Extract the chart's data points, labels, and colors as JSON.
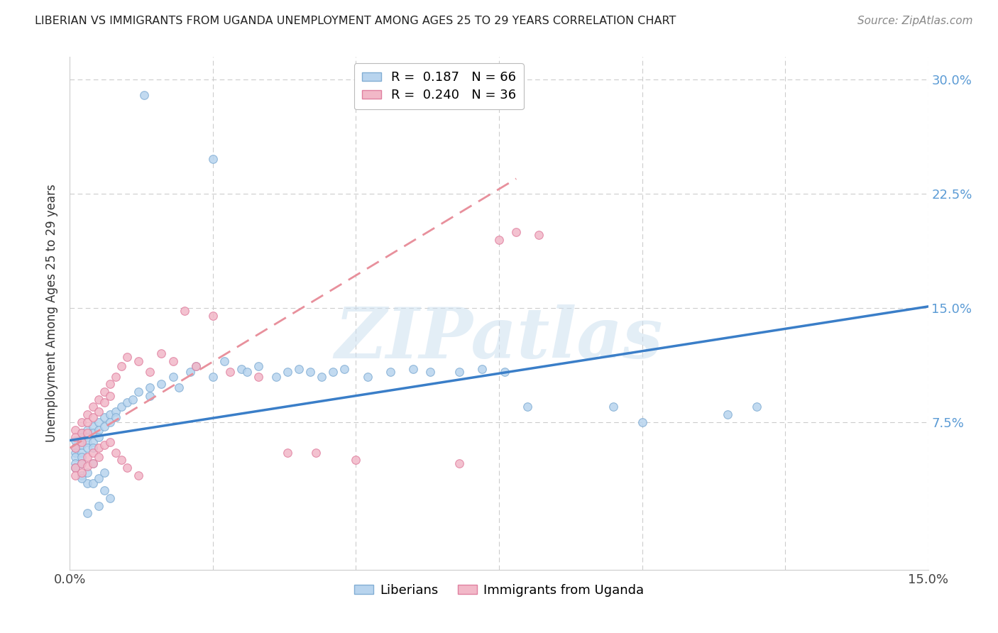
{
  "title": "LIBERIAN VS IMMIGRANTS FROM UGANDA UNEMPLOYMENT AMONG AGES 25 TO 29 YEARS CORRELATION CHART",
  "source": "Source: ZipAtlas.com",
  "ylabel": "Unemployment Among Ages 25 to 29 years",
  "xlim": [
    0.0,
    0.15
  ],
  "ylim": [
    -0.022,
    0.315
  ],
  "watermark": "ZIPatlas",
  "background_color": "#ffffff",
  "scatter_size": 70,
  "liberian_color": "#b8d4ee",
  "liberian_edge": "#82aed4",
  "uganda_color": "#f2b8c8",
  "uganda_edge": "#e080a0",
  "liberian_trend_x": [
    0.0,
    0.15
  ],
  "liberian_trend_y": [
    0.063,
    0.151
  ],
  "uganda_trend_x": [
    0.0,
    0.078
  ],
  "uganda_trend_y": [
    0.058,
    0.235
  ],
  "lib_x": [
    0.001,
    0.001,
    0.001,
    0.001,
    0.001,
    0.001,
    0.002,
    0.002,
    0.002,
    0.002,
    0.002,
    0.002,
    0.003,
    0.003,
    0.003,
    0.003,
    0.004,
    0.004,
    0.004,
    0.004,
    0.005,
    0.005,
    0.005,
    0.006,
    0.006,
    0.007,
    0.007,
    0.008,
    0.008,
    0.009,
    0.01,
    0.011,
    0.012,
    0.014,
    0.014,
    0.016,
    0.018,
    0.019,
    0.021,
    0.022,
    0.025,
    0.027,
    0.03,
    0.031,
    0.033,
    0.036,
    0.038,
    0.04,
    0.042,
    0.044,
    0.046,
    0.048,
    0.052,
    0.056,
    0.06,
    0.063,
    0.068,
    0.072,
    0.076,
    0.08,
    0.095,
    0.1,
    0.115,
    0.12,
    0.013,
    0.025
  ],
  "lib_y": [
    0.063,
    0.058,
    0.055,
    0.052,
    0.048,
    0.045,
    0.068,
    0.065,
    0.06,
    0.055,
    0.052,
    0.048,
    0.07,
    0.065,
    0.062,
    0.058,
    0.072,
    0.068,
    0.062,
    0.058,
    0.075,
    0.07,
    0.065,
    0.078,
    0.072,
    0.08,
    0.075,
    0.082,
    0.078,
    0.085,
    0.088,
    0.09,
    0.095,
    0.098,
    0.092,
    0.1,
    0.105,
    0.098,
    0.108,
    0.112,
    0.105,
    0.115,
    0.11,
    0.108,
    0.112,
    0.105,
    0.108,
    0.11,
    0.108,
    0.105,
    0.108,
    0.11,
    0.105,
    0.108,
    0.11,
    0.108,
    0.108,
    0.11,
    0.108,
    0.085,
    0.085,
    0.075,
    0.08,
    0.085,
    0.29,
    0.248
  ],
  "lib_y_neg": [
    0.045,
    0.04,
    0.035,
    0.038,
    0.042,
    0.048,
    0.035,
    0.038,
    0.042,
    0.03,
    0.025,
    0.02,
    0.015
  ],
  "lib_x_neg": [
    0.001,
    0.002,
    0.003,
    0.002,
    0.003,
    0.004,
    0.004,
    0.005,
    0.006,
    0.006,
    0.007,
    0.005,
    0.003
  ],
  "uga_x": [
    0.001,
    0.001,
    0.001,
    0.002,
    0.002,
    0.002,
    0.003,
    0.003,
    0.003,
    0.004,
    0.004,
    0.005,
    0.005,
    0.006,
    0.006,
    0.007,
    0.007,
    0.008,
    0.009,
    0.01,
    0.012,
    0.014,
    0.016,
    0.018,
    0.02,
    0.022,
    0.025,
    0.028,
    0.033,
    0.038,
    0.043,
    0.05,
    0.068,
    0.075,
    0.078,
    0.082
  ],
  "uga_y": [
    0.07,
    0.065,
    0.058,
    0.075,
    0.068,
    0.062,
    0.08,
    0.075,
    0.068,
    0.085,
    0.078,
    0.09,
    0.082,
    0.095,
    0.088,
    0.1,
    0.092,
    0.105,
    0.112,
    0.118,
    0.115,
    0.108,
    0.12,
    0.115,
    0.148,
    0.112,
    0.145,
    0.108,
    0.105,
    0.055,
    0.055,
    0.05,
    0.048,
    0.195,
    0.2,
    0.198
  ],
  "uga_x_low": [
    0.001,
    0.001,
    0.002,
    0.002,
    0.003,
    0.003,
    0.004,
    0.004,
    0.005,
    0.005,
    0.006,
    0.007,
    0.008,
    0.009,
    0.01,
    0.012
  ],
  "uga_y_low": [
    0.045,
    0.04,
    0.048,
    0.042,
    0.052,
    0.046,
    0.055,
    0.048,
    0.058,
    0.052,
    0.06,
    0.062,
    0.055,
    0.05,
    0.045,
    0.04
  ]
}
